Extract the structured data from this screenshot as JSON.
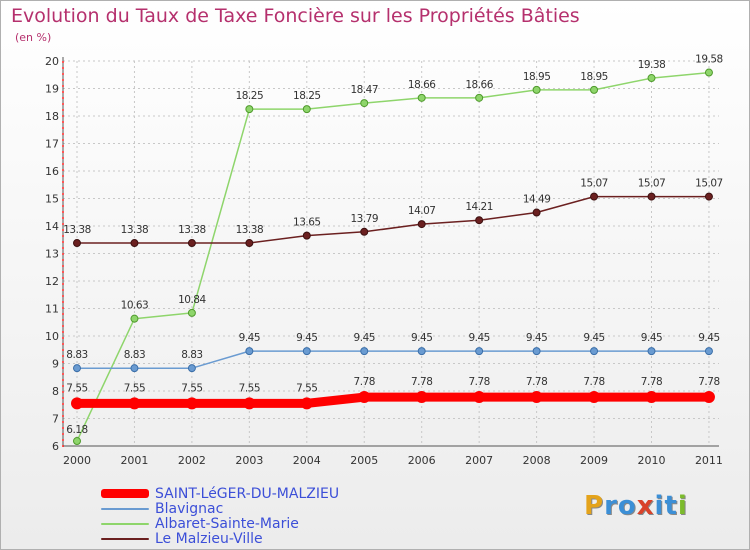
{
  "title": "Evolution du Taux de Taxe Foncière sur les Propriétés Bâties",
  "subtitle": "(en %)",
  "logo": {
    "letters": [
      "P",
      "r",
      "o",
      "x",
      "i",
      "t",
      "i"
    ],
    "colors": [
      "#e4a31b",
      "#3c8fd6",
      "#3c8fd6",
      "#d9422a",
      "#3c8fd6",
      "#3c8fd6",
      "#7cbb2c"
    ]
  },
  "chart_data": {
    "type": "line",
    "title": "Evolution du Taux de Taxe Foncière sur les Propriétés Bâties",
    "ylabel": "(en %)",
    "xlabel": "",
    "x": [
      "2000",
      "2001",
      "2002",
      "2003",
      "2004",
      "2005",
      "2006",
      "2007",
      "2008",
      "2009",
      "2010",
      "2011"
    ],
    "ylim": [
      6,
      20
    ],
    "yticks": [
      "6",
      "7",
      "8",
      "9",
      "10",
      "11",
      "12",
      "13",
      "14",
      "15",
      "16",
      "17",
      "18",
      "19",
      "20"
    ],
    "grid": true,
    "legend_position": "bottom-left",
    "series": [
      {
        "name": "SAINT-LéGER-DU-MALZIEU",
        "color": "#ff0000",
        "values": [
          7.55,
          7.55,
          7.55,
          7.55,
          7.55,
          7.78,
          7.78,
          7.78,
          7.78,
          7.78,
          7.78,
          7.78
        ],
        "labels": [
          "7.55",
          "7.55",
          "7.55",
          "7.55",
          "7.55",
          "7.78",
          "7.78",
          "7.78",
          "7.78",
          "7.78",
          "7.78",
          "7.78"
        ]
      },
      {
        "name": "Blavignac",
        "color": "#6a9bd1",
        "values": [
          8.83,
          8.83,
          8.83,
          9.45,
          9.45,
          9.45,
          9.45,
          9.45,
          9.45,
          9.45,
          9.45,
          9.45
        ],
        "labels": [
          "8.83",
          "8.83",
          "8.83",
          "9.45",
          "9.45",
          "9.45",
          "9.45",
          "9.45",
          "9.45",
          "9.45",
          "9.45",
          "9.45"
        ]
      },
      {
        "name": "Albaret-Sainte-Marie",
        "color": "#8ed56b",
        "values": [
          6.18,
          10.63,
          10.84,
          18.25,
          18.25,
          18.47,
          18.66,
          18.66,
          18.95,
          18.95,
          19.38,
          19.58
        ],
        "labels": [
          "6.18",
          "10.63",
          "10.84",
          "18.25",
          "18.25",
          "18.47",
          "18.66",
          "18.66",
          "18.95",
          "18.95",
          "19.38",
          "19.58"
        ]
      },
      {
        "name": "Le Malzieu-Ville",
        "color": "#6b2020",
        "values": [
          13.38,
          13.38,
          13.38,
          13.38,
          13.65,
          13.79,
          14.07,
          14.21,
          14.49,
          15.07,
          15.07,
          15.07
        ],
        "labels": [
          "13.38",
          "13.38",
          "13.38",
          "13.38",
          "13.65",
          "13.79",
          "14.07",
          "14.21",
          "14.49",
          "15.07",
          "15.07",
          "15.07"
        ]
      }
    ]
  }
}
